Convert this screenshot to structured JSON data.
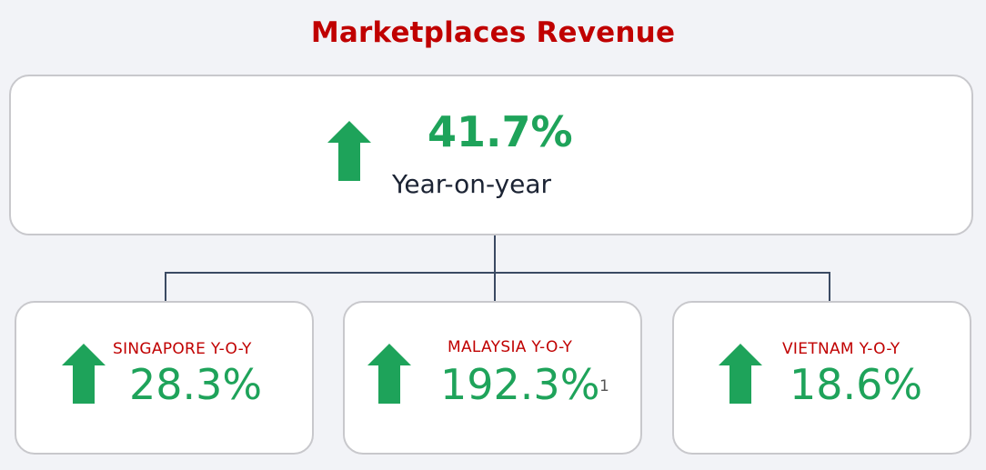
{
  "title": "Marketplaces Revenue",
  "colors": {
    "title": "#c00000",
    "positive": "#1ea35a",
    "text": "#1b2333",
    "border": "#c8c8cc"
  },
  "main": {
    "icon": "up-arrow-icon",
    "value": "41.7%",
    "label": "Year-on-year"
  },
  "regions": [
    {
      "icon": "up-arrow-icon",
      "label": "SINGAPORE Y-O-Y",
      "value": "28.3%",
      "footnote": ""
    },
    {
      "icon": "up-arrow-icon",
      "label": "MALAYSIA Y-O-Y",
      "value": "192.3%",
      "footnote": "1"
    },
    {
      "icon": "up-arrow-icon",
      "label": "VIETNAM Y-O-Y",
      "value": "18.6%",
      "footnote": ""
    }
  ]
}
